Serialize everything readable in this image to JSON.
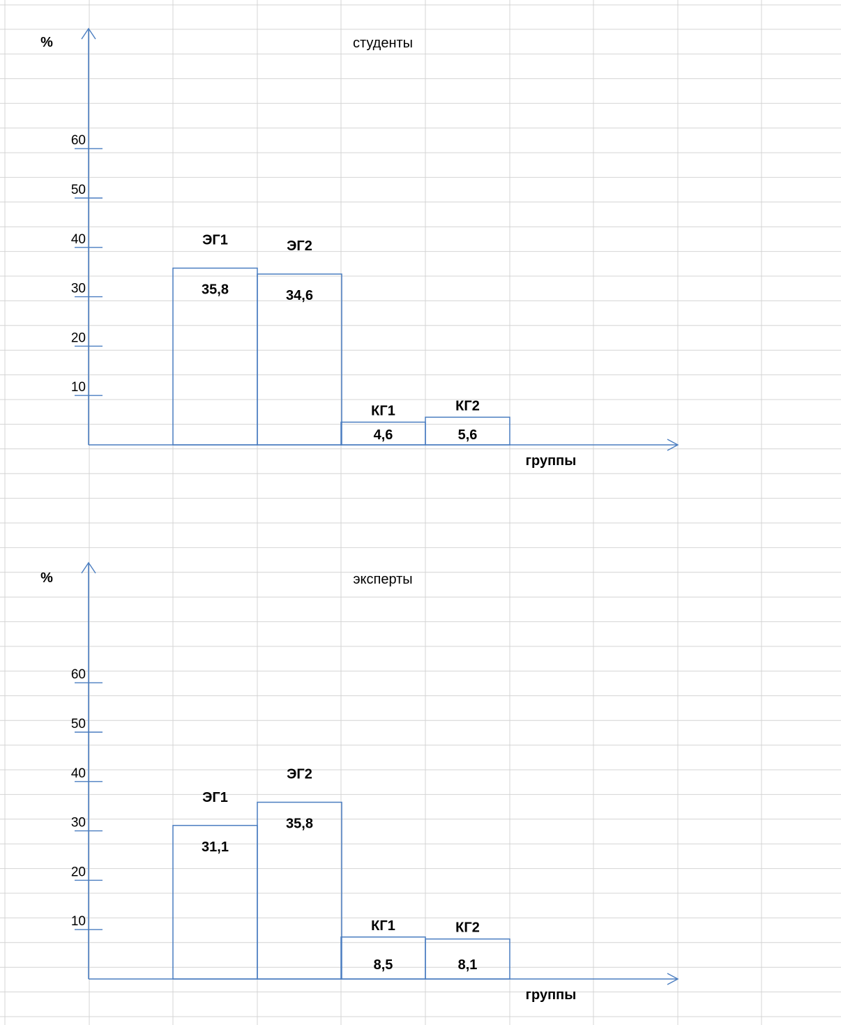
{
  "colors": {
    "grid": "#d4d4d4",
    "axis": "#4a7dc0",
    "bar": "#4a7dc0",
    "text": "#000000"
  },
  "chart_data": [
    {
      "type": "bar",
      "title": "студенты",
      "ylabel": "%",
      "xlabel": "группы",
      "yticks": [
        10,
        20,
        30,
        40,
        50,
        60
      ],
      "categories": [
        "ЭГ1",
        "ЭГ2",
        "КГ1",
        "КГ2"
      ],
      "values": [
        35.8,
        34.6,
        4.6,
        5.6
      ],
      "value_labels": [
        "35,8",
        "34,6",
        "4,6",
        "5,6"
      ],
      "grid": true
    },
    {
      "type": "bar",
      "title": "эксперты",
      "ylabel": "%",
      "xlabel": "группы",
      "yticks": [
        10,
        20,
        30,
        40,
        50,
        60
      ],
      "categories": [
        "ЭГ1",
        "ЭГ2",
        "КГ1",
        "КГ2"
      ],
      "values": [
        31.1,
        35.8,
        8.5,
        8.1
      ],
      "value_labels": [
        "31,1",
        "35,8",
        "8,5",
        "8,1"
      ],
      "grid": true
    }
  ]
}
